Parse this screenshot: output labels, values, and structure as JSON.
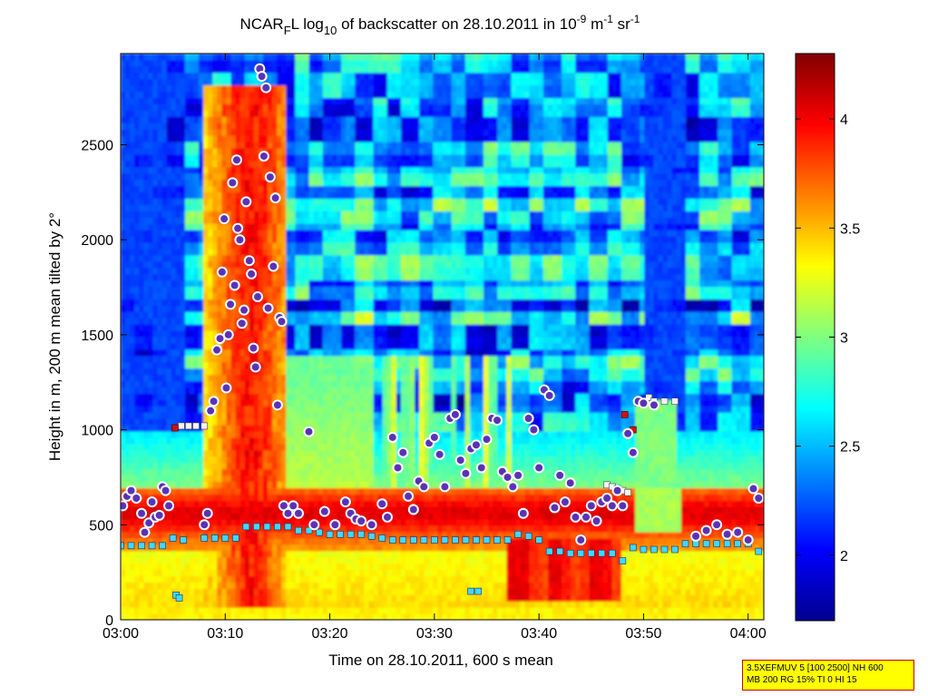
{
  "chart_data": {
    "type": "heatmap",
    "title_parts": {
      "t1": "NCAR",
      "t1_sub": "F",
      "t2": "L log",
      "t2_sub": "10",
      "t3": " of backscatter on 28.10.2011 in 10",
      "t3_sup": "-9",
      "t4": " m",
      "t4_sup": "-1",
      "t5": " sr",
      "t5_sup": "-1"
    },
    "xlabel": "Time on 28.10.2011, 600 s mean",
    "ylabel": "Height in m, 200 m mean tilted by 2°",
    "x_ticks": [
      "03:00",
      "03:10",
      "03:20",
      "03:30",
      "03:40",
      "03:50",
      "04:00"
    ],
    "x_range_minutes": [
      0,
      61.5
    ],
    "y_ticks": [
      "0",
      "500",
      "1000",
      "1500",
      "2000",
      "2500"
    ],
    "y_range": [
      0,
      2980
    ],
    "colorbar": {
      "ticks": [
        "2",
        "2.5",
        "3",
        "3.5",
        "4"
      ],
      "range": [
        1.7,
        4.3
      ],
      "colormap": "jet"
    },
    "colors": {
      "low": "#00008f",
      "mid_low": "#00ffff",
      "mid": "#ffff00",
      "mid_high": "#ff8000",
      "high": "#800000",
      "marker_fill": "#5a32b4",
      "marker_ring": "#ffffff",
      "cyan_square": "#40d8ff",
      "red_square": "#d01010"
    },
    "layer_series": {
      "name": "cyan squares (mixing layer)",
      "points": [
        [
          0,
          390
        ],
        [
          1,
          390
        ],
        [
          2,
          390
        ],
        [
          3,
          390
        ],
        [
          4,
          390
        ],
        [
          5,
          430
        ],
        [
          6,
          420
        ],
        [
          8,
          430
        ],
        [
          9,
          430
        ],
        [
          10,
          430
        ],
        [
          11,
          430
        ],
        [
          12,
          490
        ],
        [
          13,
          490
        ],
        [
          14,
          490
        ],
        [
          15,
          490
        ],
        [
          16,
          490
        ],
        [
          17,
          470
        ],
        [
          18,
          470
        ],
        [
          19,
          460
        ],
        [
          20,
          450
        ],
        [
          21,
          450
        ],
        [
          22,
          450
        ],
        [
          23,
          450
        ],
        [
          24,
          440
        ],
        [
          25,
          430
        ],
        [
          26,
          420
        ],
        [
          27,
          420
        ],
        [
          28,
          420
        ],
        [
          29,
          420
        ],
        [
          30,
          420
        ],
        [
          31,
          420
        ],
        [
          32,
          420
        ],
        [
          33,
          420
        ],
        [
          34,
          420
        ],
        [
          35,
          420
        ],
        [
          36,
          420
        ],
        [
          37,
          420
        ],
        [
          38,
          450
        ],
        [
          39,
          440
        ],
        [
          40,
          420
        ],
        [
          41,
          360
        ],
        [
          42,
          360
        ],
        [
          43,
          350
        ],
        [
          44,
          350
        ],
        [
          45,
          350
        ],
        [
          46,
          350
        ],
        [
          47,
          350
        ],
        [
          48,
          310
        ],
        [
          49,
          380
        ],
        [
          50,
          370
        ],
        [
          51,
          370
        ],
        [
          52,
          370
        ],
        [
          53,
          370
        ],
        [
          54,
          400
        ],
        [
          55,
          400
        ],
        [
          56,
          400
        ],
        [
          57,
          400
        ],
        [
          58,
          400
        ],
        [
          59,
          400
        ],
        [
          60,
          400
        ],
        [
          61,
          360
        ]
      ]
    },
    "elevated_layer_series": {
      "name": "white squares",
      "points": [
        [
          5.8,
          1020
        ],
        [
          6.5,
          1020
        ],
        [
          7.2,
          1020
        ],
        [
          8,
          1020
        ],
        [
          46.5,
          710
        ],
        [
          47,
          700
        ],
        [
          47.5,
          690
        ],
        [
          48,
          680
        ],
        [
          48.5,
          670
        ],
        [
          49.5,
          1140
        ],
        [
          50.5,
          1170
        ],
        [
          51,
          1150
        ],
        [
          52,
          1150
        ],
        [
          53,
          1150
        ]
      ]
    },
    "marker_points": [
      [
        0.2,
        600
      ],
      [
        0.6,
        650
      ],
      [
        1,
        680
      ],
      [
        1.5,
        640
      ],
      [
        2,
        560
      ],
      [
        2.3,
        460
      ],
      [
        2.7,
        510
      ],
      [
        3,
        620
      ],
      [
        3.3,
        540
      ],
      [
        3.7,
        550
      ],
      [
        4,
        700
      ],
      [
        4.3,
        680
      ],
      [
        4.6,
        600
      ],
      [
        8,
        500
      ],
      [
        8.3,
        560
      ],
      [
        8.6,
        1100
      ],
      [
        8.9,
        1150
      ],
      [
        9.2,
        1420
      ],
      [
        9.5,
        1480
      ],
      [
        9.7,
        1830
      ],
      [
        9.9,
        2110
      ],
      [
        10.1,
        1220
      ],
      [
        10.3,
        1500
      ],
      [
        10.5,
        1660
      ],
      [
        10.7,
        2300
      ],
      [
        10.9,
        1760
      ],
      [
        11.1,
        2420
      ],
      [
        11.2,
        2060
      ],
      [
        11.4,
        2000
      ],
      [
        11.6,
        1560
      ],
      [
        11.8,
        1630
      ],
      [
        12,
        2200
      ],
      [
        12.3,
        1890
      ],
      [
        12.5,
        1820
      ],
      [
        12.7,
        1430
      ],
      [
        12.9,
        1330
      ],
      [
        13.1,
        1700
      ],
      [
        13.3,
        2900
      ],
      [
        13.5,
        2860
      ],
      [
        13.7,
        2440
      ],
      [
        13.9,
        2800
      ],
      [
        14.1,
        1640
      ],
      [
        14.3,
        2330
      ],
      [
        14.6,
        1860
      ],
      [
        14.8,
        2220
      ],
      [
        15,
        1130
      ],
      [
        15.2,
        1590
      ],
      [
        15.4,
        1570
      ],
      [
        15.6,
        600
      ],
      [
        16,
        560
      ],
      [
        16.5,
        600
      ],
      [
        17,
        560
      ],
      [
        18,
        990
      ],
      [
        18.5,
        500
      ],
      [
        19.5,
        570
      ],
      [
        20.5,
        500
      ],
      [
        21.5,
        620
      ],
      [
        22,
        560
      ],
      [
        22.5,
        530
      ],
      [
        23,
        520
      ],
      [
        24,
        500
      ],
      [
        25,
        610
      ],
      [
        25.5,
        540
      ],
      [
        26,
        960
      ],
      [
        26.5,
        800
      ],
      [
        27,
        880
      ],
      [
        27.5,
        650
      ],
      [
        28,
        580
      ],
      [
        28.5,
        730
      ],
      [
        29,
        700
      ],
      [
        29.5,
        930
      ],
      [
        30,
        960
      ],
      [
        30.5,
        870
      ],
      [
        31,
        700
      ],
      [
        31.5,
        1060
      ],
      [
        32,
        1080
      ],
      [
        32.5,
        840
      ],
      [
        33,
        770
      ],
      [
        33.5,
        900
      ],
      [
        34,
        920
      ],
      [
        34.5,
        800
      ],
      [
        35,
        950
      ],
      [
        35.5,
        1060
      ],
      [
        36,
        1050
      ],
      [
        36.5,
        780
      ],
      [
        37,
        750
      ],
      [
        37.5,
        700
      ],
      [
        38,
        760
      ],
      [
        38.5,
        560
      ],
      [
        39,
        1060
      ],
      [
        39.5,
        1000
      ],
      [
        40,
        800
      ],
      [
        40.5,
        1210
      ],
      [
        41,
        1180
      ],
      [
        41.5,
        590
      ],
      [
        42,
        760
      ],
      [
        42.5,
        620
      ],
      [
        43,
        720
      ],
      [
        43.5,
        540
      ],
      [
        44,
        420
      ],
      [
        44.5,
        540
      ],
      [
        45,
        600
      ],
      [
        45.5,
        520
      ],
      [
        46,
        620
      ],
      [
        46.5,
        640
      ],
      [
        47,
        600
      ],
      [
        47.5,
        680
      ],
      [
        48,
        600
      ],
      [
        48.5,
        980
      ],
      [
        49,
        880
      ],
      [
        49.5,
        1150
      ],
      [
        50,
        1140
      ],
      [
        51,
        1130
      ],
      [
        55,
        440
      ],
      [
        56,
        470
      ],
      [
        57,
        500
      ],
      [
        58,
        450
      ],
      [
        59,
        460
      ],
      [
        60,
        420
      ],
      [
        60.5,
        690
      ],
      [
        61,
        640
      ]
    ],
    "info_box": [
      "3.5XEFMUV 5 [100 2500] NH 600",
      "MB 200 RG 15% TI 0 HI 15"
    ]
  }
}
